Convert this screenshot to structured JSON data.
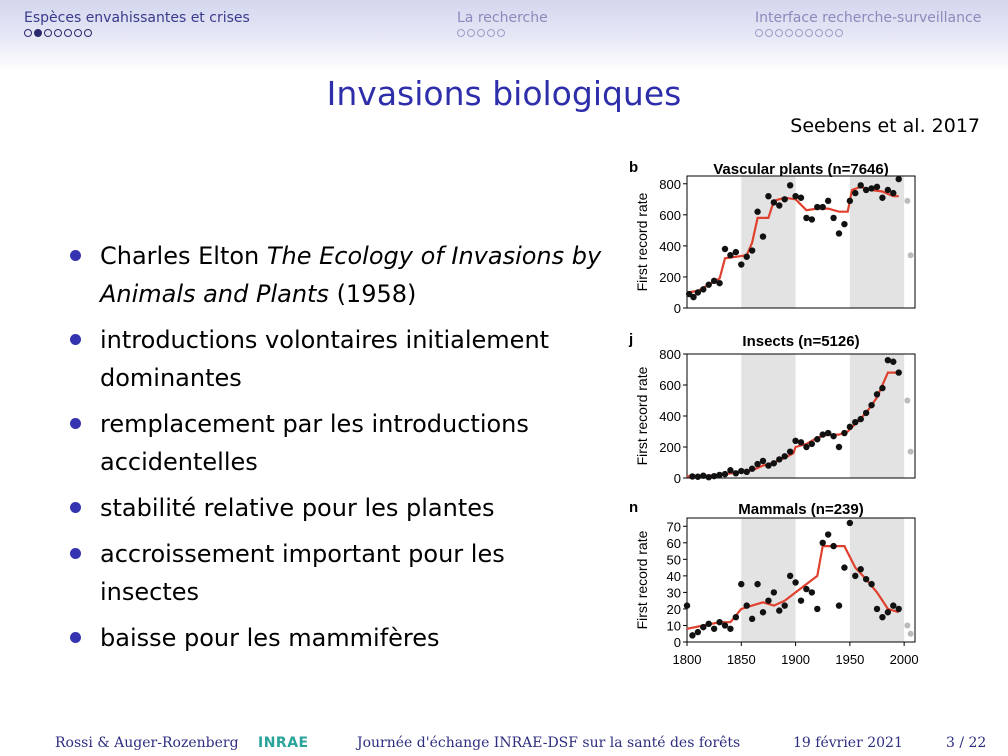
{
  "nav": {
    "sections": [
      {
        "label": "Espèces envahissantes et crises",
        "dots_total": 7,
        "dots_filled": [
          1
        ]
      },
      {
        "label": "La recherche",
        "dots_total": 5,
        "dots_filled": []
      },
      {
        "label": "Interface recherche-surveillance",
        "dots_total": 9,
        "dots_filled": []
      }
    ]
  },
  "slide": {
    "title": "Invasions biologiques",
    "citation": "Seebens et al. 2017",
    "bullets": {
      "b1": {
        "text1": "Charles Elton ",
        "italic": "The Ecology of Invasions by Animals and Plants",
        "text2": " (1958)"
      },
      "b2": "introductions volontaires initialement dominantes",
      "b3": "remplacement par les introductions accidentelles",
      "b4": "stabilité relative pour les plantes",
      "b5": "accroissement important pour les insectes",
      "b6": "baisse pour les mammifères"
    }
  },
  "footer": {
    "authors": "Rossi & Auger-Rozenberg",
    "logo": "INRAE",
    "event": "Journée d'échange INRAE-DSF sur la santé des forêts",
    "date": "19 février 2021",
    "page": "3 / 22"
  },
  "colors": {
    "accent": "#2e2eab",
    "bullet": "#3434b0",
    "fit_line": "#e0412e",
    "shade": "#e3e3e3",
    "logo": "#2aa39a"
  },
  "chart_data": [
    {
      "type": "scatter",
      "panel_letter": "b",
      "title": "Vascular plants (n=7646)",
      "ylabel": "First record rate",
      "ylim": [
        0,
        850
      ],
      "yticks": [
        0,
        200,
        400,
        600,
        800
      ],
      "xlim": [
        1800,
        2010
      ],
      "shaded_ranges": [
        [
          1850,
          1900
        ],
        [
          1950,
          2000
        ]
      ],
      "points": [
        [
          1802,
          90
        ],
        [
          1806,
          70
        ],
        [
          1810,
          100
        ],
        [
          1815,
          120
        ],
        [
          1820,
          150
        ],
        [
          1825,
          175
        ],
        [
          1830,
          160
        ],
        [
          1835,
          380
        ],
        [
          1840,
          340
        ],
        [
          1845,
          360
        ],
        [
          1850,
          280
        ],
        [
          1855,
          330
        ],
        [
          1860,
          370
        ],
        [
          1865,
          620
        ],
        [
          1870,
          460
        ],
        [
          1875,
          720
        ],
        [
          1880,
          680
        ],
        [
          1885,
          660
        ],
        [
          1890,
          700
        ],
        [
          1895,
          790
        ],
        [
          1900,
          720
        ],
        [
          1905,
          710
        ],
        [
          1910,
          580
        ],
        [
          1915,
          570
        ],
        [
          1920,
          650
        ],
        [
          1925,
          650
        ],
        [
          1930,
          690
        ],
        [
          1935,
          580
        ],
        [
          1940,
          480
        ],
        [
          1945,
          540
        ],
        [
          1950,
          690
        ],
        [
          1955,
          740
        ],
        [
          1960,
          790
        ],
        [
          1965,
          760
        ],
        [
          1970,
          770
        ],
        [
          1975,
          780
        ],
        [
          1980,
          710
        ],
        [
          1985,
          760
        ],
        [
          1990,
          740
        ],
        [
          1995,
          830
        ]
      ],
      "fit": [
        [
          1800,
          100
        ],
        [
          1810,
          110
        ],
        [
          1820,
          150
        ],
        [
          1830,
          190
        ],
        [
          1835,
          320
        ],
        [
          1845,
          330
        ],
        [
          1855,
          340
        ],
        [
          1860,
          420
        ],
        [
          1865,
          580
        ],
        [
          1875,
          580
        ],
        [
          1880,
          690
        ],
        [
          1890,
          710
        ],
        [
          1900,
          700
        ],
        [
          1910,
          630
        ],
        [
          1920,
          640
        ],
        [
          1930,
          640
        ],
        [
          1940,
          620
        ],
        [
          1948,
          620
        ],
        [
          1952,
          760
        ],
        [
          1960,
          780
        ],
        [
          1970,
          760
        ],
        [
          1980,
          750
        ],
        [
          1990,
          720
        ],
        [
          1995,
          720
        ]
      ],
      "grey_points": [
        [
          2003,
          690
        ],
        [
          2006,
          340
        ]
      ]
    },
    {
      "type": "scatter",
      "panel_letter": "j",
      "title": "Insects (n=5126)",
      "ylabel": "First record rate",
      "ylim": [
        0,
        800
      ],
      "yticks": [
        0,
        200,
        400,
        600,
        800
      ],
      "xlim": [
        1800,
        2010
      ],
      "shaded_ranges": [
        [
          1850,
          1900
        ],
        [
          1950,
          2000
        ]
      ],
      "points": [
        [
          1805,
          10
        ],
        [
          1810,
          8
        ],
        [
          1815,
          15
        ],
        [
          1820,
          5
        ],
        [
          1825,
          12
        ],
        [
          1830,
          20
        ],
        [
          1835,
          25
        ],
        [
          1840,
          50
        ],
        [
          1845,
          30
        ],
        [
          1850,
          45
        ],
        [
          1855,
          40
        ],
        [
          1860,
          60
        ],
        [
          1865,
          90
        ],
        [
          1870,
          110
        ],
        [
          1875,
          80
        ],
        [
          1880,
          95
        ],
        [
          1885,
          120
        ],
        [
          1890,
          140
        ],
        [
          1895,
          170
        ],
        [
          1900,
          240
        ],
        [
          1905,
          230
        ],
        [
          1910,
          200
        ],
        [
          1915,
          220
        ],
        [
          1920,
          250
        ],
        [
          1925,
          280
        ],
        [
          1930,
          290
        ],
        [
          1935,
          270
        ],
        [
          1940,
          200
        ],
        [
          1945,
          290
        ],
        [
          1950,
          330
        ],
        [
          1955,
          360
        ],
        [
          1960,
          380
        ],
        [
          1965,
          420
        ],
        [
          1970,
          470
        ],
        [
          1975,
          540
        ],
        [
          1980,
          580
        ],
        [
          1985,
          760
        ],
        [
          1990,
          750
        ],
        [
          1995,
          680
        ]
      ],
      "fit": [
        [
          1800,
          10
        ],
        [
          1820,
          15
        ],
        [
          1840,
          30
        ],
        [
          1850,
          40
        ],
        [
          1860,
          50
        ],
        [
          1870,
          80
        ],
        [
          1880,
          100
        ],
        [
          1890,
          130
        ],
        [
          1898,
          160
        ],
        [
          1900,
          200
        ],
        [
          1910,
          220
        ],
        [
          1920,
          260
        ],
        [
          1930,
          280
        ],
        [
          1940,
          280
        ],
        [
          1948,
          300
        ],
        [
          1955,
          350
        ],
        [
          1965,
          420
        ],
        [
          1975,
          520
        ],
        [
          1985,
          680
        ],
        [
          1995,
          680
        ]
      ],
      "grey_points": [
        [
          2003,
          500
        ],
        [
          2006,
          170
        ]
      ]
    },
    {
      "type": "scatter",
      "panel_letter": "n",
      "title": "Mammals (n=239)",
      "ylabel": "First record rate",
      "ylim": [
        0,
        75
      ],
      "yticks": [
        0,
        10,
        20,
        30,
        40,
        50,
        60,
        70
      ],
      "xlim": [
        1800,
        2010
      ],
      "xticks": [
        1800,
        1850,
        1900,
        1950,
        2000
      ],
      "shaded_ranges": [
        [
          1850,
          1900
        ],
        [
          1950,
          2000
        ]
      ],
      "points": [
        [
          1800,
          22
        ],
        [
          1805,
          4
        ],
        [
          1810,
          6
        ],
        [
          1815,
          9
        ],
        [
          1820,
          11
        ],
        [
          1825,
          8
        ],
        [
          1830,
          12
        ],
        [
          1835,
          10
        ],
        [
          1840,
          8
        ],
        [
          1845,
          15
        ],
        [
          1850,
          35
        ],
        [
          1855,
          22
        ],
        [
          1860,
          14
        ],
        [
          1865,
          35
        ],
        [
          1870,
          18
        ],
        [
          1875,
          25
        ],
        [
          1880,
          30
        ],
        [
          1885,
          19
        ],
        [
          1890,
          22
        ],
        [
          1895,
          40
        ],
        [
          1900,
          36
        ],
        [
          1905,
          25
        ],
        [
          1910,
          32
        ],
        [
          1915,
          30
        ],
        [
          1920,
          20
        ],
        [
          1925,
          60
        ],
        [
          1930,
          65
        ],
        [
          1935,
          58
        ],
        [
          1940,
          22
        ],
        [
          1945,
          45
        ],
        [
          1950,
          72
        ],
        [
          1955,
          40
        ],
        [
          1960,
          44
        ],
        [
          1965,
          38
        ],
        [
          1970,
          35
        ],
        [
          1975,
          20
        ],
        [
          1980,
          15
        ],
        [
          1985,
          18
        ],
        [
          1990,
          22
        ],
        [
          1995,
          20
        ]
      ],
      "fit": [
        [
          1800,
          8
        ],
        [
          1815,
          10
        ],
        [
          1830,
          12
        ],
        [
          1840,
          12
        ],
        [
          1850,
          20
        ],
        [
          1860,
          22
        ],
        [
          1870,
          24
        ],
        [
          1880,
          22
        ],
        [
          1890,
          25
        ],
        [
          1900,
          30
        ],
        [
          1910,
          35
        ],
        [
          1920,
          40
        ],
        [
          1925,
          58
        ],
        [
          1935,
          58
        ],
        [
          1945,
          58
        ],
        [
          1955,
          45
        ],
        [
          1965,
          38
        ],
        [
          1975,
          30
        ],
        [
          1985,
          20
        ],
        [
          1995,
          18
        ]
      ],
      "grey_points": [
        [
          2003,
          10
        ],
        [
          2006,
          5
        ]
      ]
    }
  ]
}
